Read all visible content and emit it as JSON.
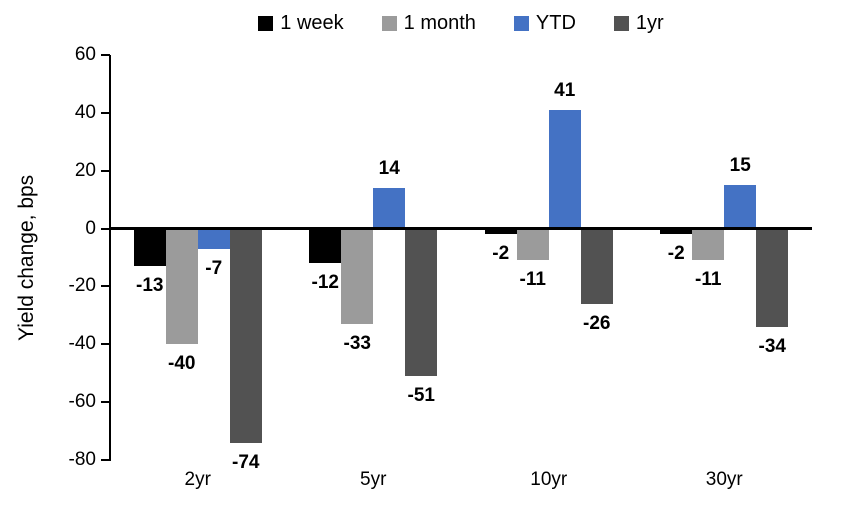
{
  "chart_data": {
    "type": "bar",
    "title": "",
    "xlabel": "",
    "ylabel": "Yield change, bps",
    "categories": [
      "2yr",
      "5yr",
      "10yr",
      "30yr"
    ],
    "series": [
      {
        "name": "1 week",
        "color": "#000000",
        "values": [
          -13,
          -12,
          -2,
          -2
        ]
      },
      {
        "name": "1 month",
        "color": "#9B9B9B",
        "values": [
          -40,
          -33,
          -11,
          -11
        ]
      },
      {
        "name": "YTD",
        "color": "#4472C4",
        "values": [
          -7,
          14,
          41,
          15
        ]
      },
      {
        "name": "1yr",
        "color": "#525252",
        "values": [
          -74,
          -51,
          -26,
          -34
        ]
      }
    ],
    "ylim": [
      -80,
      60
    ],
    "yticks": [
      60,
      40,
      20,
      0,
      -20,
      -40,
      -60,
      -80
    ],
    "grid": false,
    "legend_position": "top",
    "data_labels": "outside-end",
    "axis_color": "#000000"
  }
}
